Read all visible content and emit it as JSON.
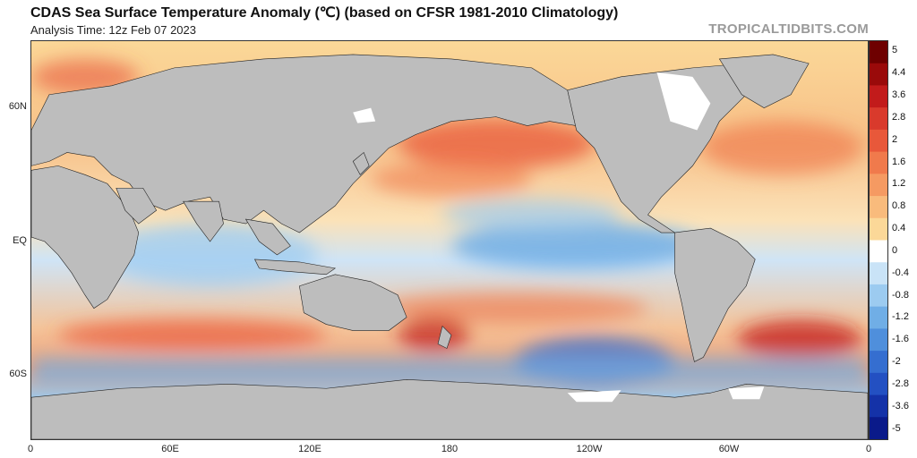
{
  "header": {
    "title": "CDAS Sea Surface Temperature Anomaly (℃) (based on CFSR 1981-2010 Climatology)",
    "subtitle": "Analysis Time: 12z Feb 07 2023",
    "credit": "TROPICALTIDBITS.COM"
  },
  "axes": {
    "lat_labels": [
      "60N",
      "EQ",
      "60S"
    ],
    "lon_labels": [
      "0",
      "60E",
      "120E",
      "180",
      "120W",
      "60W",
      "0"
    ]
  },
  "colorbar": {
    "labels": [
      "5",
      "4.4",
      "3.6",
      "2.8",
      "2",
      "1.6",
      "1.2",
      "0.8",
      "0.4",
      "0",
      "-0.4",
      "-0.8",
      "-1.2",
      "-1.6",
      "-2",
      "-2.8",
      "-3.6",
      "-5"
    ],
    "colors": [
      "#6e0000",
      "#9a0a0a",
      "#c21b1b",
      "#d93a2c",
      "#e8583a",
      "#f07a4c",
      "#f59a62",
      "#f9bb7c",
      "#fbd898",
      "#ffffff",
      "#c9e3f7",
      "#9ccbf0",
      "#70aee6",
      "#4f8fdc",
      "#356ed0",
      "#2350c2",
      "#1432a8",
      "#0a1a8a"
    ]
  },
  "colors": {
    "land": "#bdbdbd",
    "ice": "#ffffff",
    "warm_strong": "#d93a2c",
    "warm_weak": "#f9bb7c",
    "cool_weak": "#9ccbf0",
    "cool_strong": "#2350c2"
  }
}
